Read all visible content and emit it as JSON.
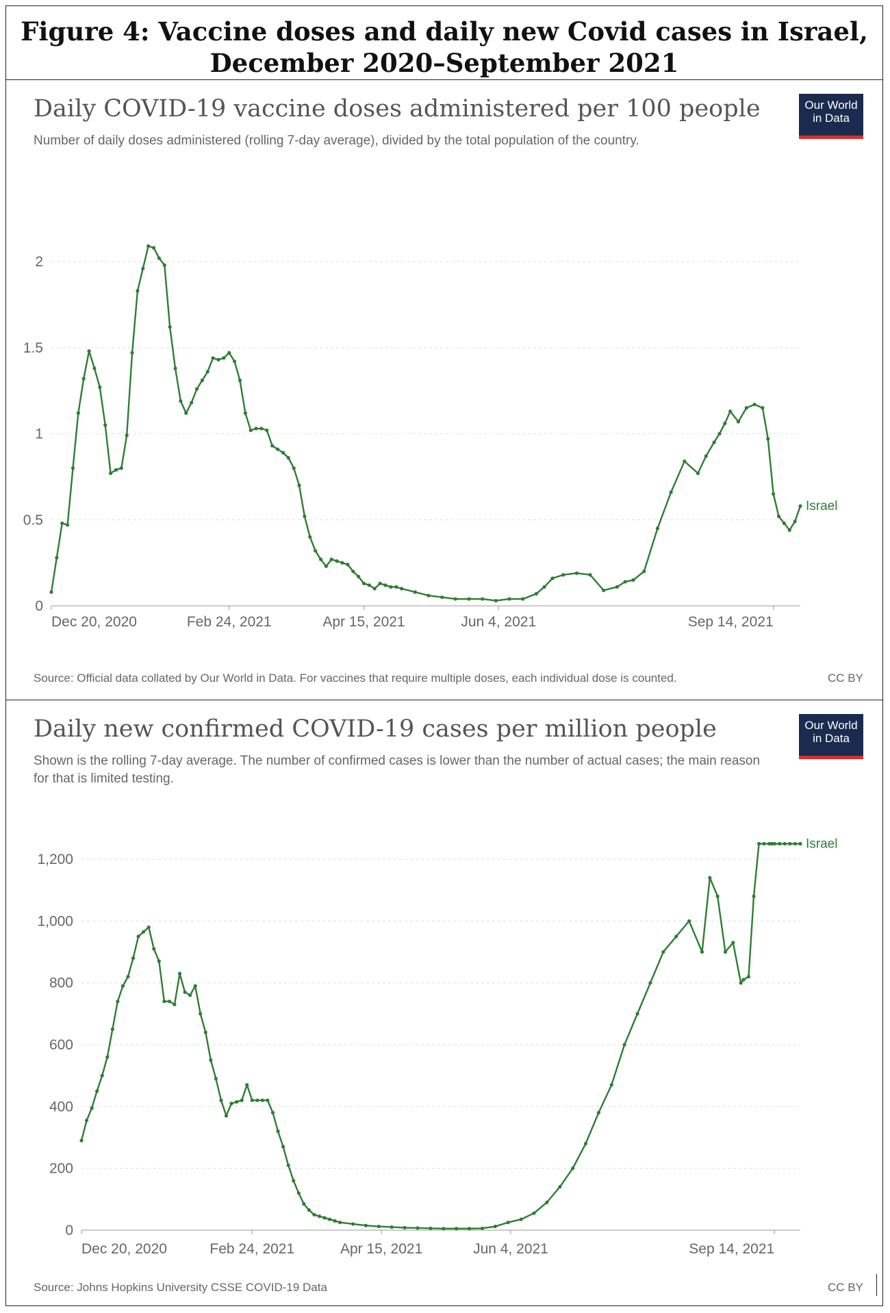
{
  "figure": {
    "heading": "Figure 4: Vaccine doses and daily new Covid cases in Israel, December 2020–September 2021"
  },
  "colors": {
    "line": "#2e7d32",
    "grid": "#dddddd",
    "logo_bg": "#1a2b4f",
    "logo_bar": "#d7312e"
  },
  "chart_data": [
    {
      "type": "line",
      "title": "Daily COVID-19 vaccine doses administered per 100 people",
      "subtitle": "Number of daily doses administered (rolling 7-day average), divided by the total population of the country.",
      "logo": [
        "Our World",
        "in Data"
      ],
      "source": "Source: Official data collated by Our World in Data. For vaccines that require multiple doses, each individual dose is counted.",
      "license": "CC BY",
      "xlabel": "",
      "ylabel": "",
      "xlim": [
        0,
        278
      ],
      "ylim": [
        0,
        2.1
      ],
      "x_ticks": [
        {
          "value": 0,
          "label": "Dec 20, 2020"
        },
        {
          "value": 66,
          "label": "Feb 24, 2021"
        },
        {
          "value": 116,
          "label": "Apr 15, 2021"
        },
        {
          "value": 166,
          "label": "Jun 4, 2021"
        },
        {
          "value": 268,
          "label": "Sep 14, 2021"
        }
      ],
      "y_ticks": [
        {
          "value": 0,
          "label": "0"
        },
        {
          "value": 0.5,
          "label": "0.5"
        },
        {
          "value": 1,
          "label": "1"
        },
        {
          "value": 1.5,
          "label": "1.5"
        },
        {
          "value": 2,
          "label": "2"
        }
      ],
      "series": [
        {
          "name": "Israel",
          "x": [
            0,
            2,
            4,
            6,
            8,
            10,
            12,
            14,
            16,
            18,
            20,
            22,
            24,
            26,
            28,
            30,
            32,
            34,
            36,
            38,
            40,
            42,
            44,
            46,
            48,
            50,
            52,
            54,
            56,
            58,
            60,
            62,
            64,
            66,
            68,
            70,
            72,
            74,
            76,
            78,
            80,
            82,
            84,
            86,
            88,
            90,
            92,
            94,
            96,
            98,
            100,
            102,
            104,
            106,
            108,
            110,
            112,
            114,
            116,
            118,
            120,
            122,
            124,
            126,
            128,
            130,
            135,
            140,
            145,
            150,
            155,
            160,
            165,
            170,
            175,
            180,
            183,
            186,
            190,
            195,
            200,
            205,
            210,
            213,
            216,
            220,
            225,
            230,
            235,
            240,
            243,
            246,
            248,
            250,
            252,
            255,
            258,
            261,
            264,
            266,
            268,
            270,
            272,
            274,
            276,
            278
          ],
          "values": [
            0.08,
            0.28,
            0.48,
            0.47,
            0.8,
            1.12,
            1.32,
            1.48,
            1.38,
            1.27,
            1.05,
            0.77,
            0.79,
            0.8,
            0.99,
            1.47,
            1.83,
            1.96,
            2.09,
            2.08,
            2.02,
            1.98,
            1.62,
            1.38,
            1.19,
            1.12,
            1.18,
            1.26,
            1.31,
            1.36,
            1.44,
            1.43,
            1.44,
            1.47,
            1.42,
            1.31,
            1.12,
            1.02,
            1.03,
            1.03,
            1.02,
            0.93,
            0.91,
            0.89,
            0.86,
            0.8,
            0.7,
            0.52,
            0.4,
            0.32,
            0.27,
            0.23,
            0.27,
            0.26,
            0.25,
            0.24,
            0.2,
            0.17,
            0.13,
            0.12,
            0.1,
            0.13,
            0.12,
            0.11,
            0.11,
            0.1,
            0.08,
            0.06,
            0.05,
            0.04,
            0.04,
            0.04,
            0.03,
            0.04,
            0.04,
            0.07,
            0.11,
            0.16,
            0.18,
            0.19,
            0.18,
            0.09,
            0.11,
            0.14,
            0.15,
            0.2,
            0.45,
            0.66,
            0.84,
            0.77,
            0.87,
            0.95,
            1.0,
            1.06,
            1.13,
            1.07,
            1.15,
            1.17,
            1.15,
            0.97,
            0.65,
            0.52,
            0.48,
            0.44,
            0.49,
            0.58
          ]
        }
      ]
    },
    {
      "type": "line",
      "title": "Daily new confirmed COVID-19 cases per million people",
      "subtitle": "Shown is the rolling 7-day average. The number of confirmed cases is lower than the number of actual cases; the main reason for that is limited testing.",
      "logo": [
        "Our World",
        "in Data"
      ],
      "source": "Source: Johns Hopkins University CSSE COVID-19 Data",
      "license": "CC BY",
      "xlabel": "",
      "ylabel": "",
      "xlim": [
        0,
        278
      ],
      "ylim": [
        0,
        1260
      ],
      "x_ticks": [
        {
          "value": 0,
          "label": "Dec 20, 2020"
        },
        {
          "value": 66,
          "label": "Feb 24, 2021"
        },
        {
          "value": 116,
          "label": "Apr 15, 2021"
        },
        {
          "value": 166,
          "label": "Jun 4, 2021"
        },
        {
          "value": 268,
          "label": "Sep 14, 2021"
        }
      ],
      "y_ticks": [
        {
          "value": 0,
          "label": "0"
        },
        {
          "value": 200,
          "label": "200"
        },
        {
          "value": 400,
          "label": "400"
        },
        {
          "value": 600,
          "label": "600"
        },
        {
          "value": 800,
          "label": "800"
        },
        {
          "value": 1000,
          "label": "1,000"
        },
        {
          "value": 1200,
          "label": "1,200"
        }
      ],
      "series": [
        {
          "name": "Israel",
          "x": [
            0,
            2,
            4,
            6,
            8,
            10,
            12,
            14,
            16,
            18,
            20,
            22,
            24,
            26,
            28,
            30,
            32,
            34,
            36,
            38,
            40,
            42,
            44,
            46,
            48,
            50,
            52,
            54,
            56,
            58,
            60,
            62,
            64,
            66,
            68,
            70,
            72,
            74,
            76,
            78,
            80,
            82,
            84,
            86,
            88,
            90,
            92,
            94,
            96,
            98,
            100,
            105,
            110,
            115,
            120,
            125,
            130,
            135,
            140,
            145,
            150,
            155,
            160,
            165,
            170,
            175,
            180,
            185,
            190,
            195,
            200,
            205,
            210,
            215,
            220,
            225,
            230,
            235,
            240,
            243,
            246,
            249,
            252,
            255,
            256,
            258,
            260,
            262,
            264,
            266,
            267,
            268,
            270,
            272,
            274,
            276,
            278
          ],
          "values": [
            290,
            355,
            395,
            450,
            500,
            560,
            650,
            740,
            790,
            820,
            880,
            950,
            965,
            980,
            910,
            870,
            740,
            740,
            730,
            830,
            770,
            760,
            790,
            700,
            640,
            550,
            490,
            420,
            370,
            410,
            415,
            420,
            470,
            420,
            420,
            420,
            420,
            380,
            320,
            270,
            210,
            160,
            120,
            85,
            65,
            50,
            45,
            40,
            35,
            30,
            25,
            20,
            15,
            12,
            10,
            8,
            7,
            6,
            5,
            5,
            5,
            6,
            12,
            25,
            35,
            55,
            90,
            140,
            200,
            280,
            380,
            470,
            600,
            700,
            800,
            900,
            950,
            1000,
            900,
            1140,
            1080,
            900,
            930,
            800,
            810,
            820,
            1080,
            1250,
            1250,
            1250,
            1250,
            1250,
            1250,
            1250,
            1250,
            1250,
            1250
          ],
          "values_note": "Last points: rise to 1080 then 1250 at end"
        }
      ]
    }
  ]
}
